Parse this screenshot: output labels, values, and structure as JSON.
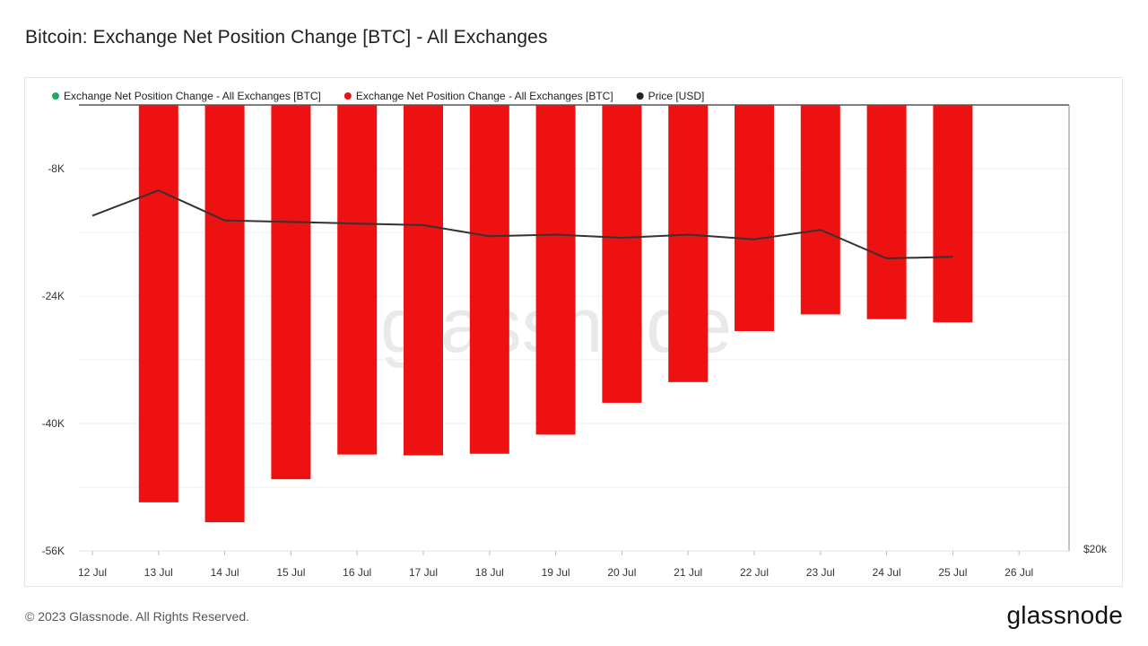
{
  "header": {
    "title": "Bitcoin: Exchange Net Position Change [BTC] - All Exchanges"
  },
  "footer": {
    "copyright": "© 2023 Glassnode. All Rights Reserved.",
    "logo": "glassnode"
  },
  "watermark": "glassnode",
  "colors": {
    "positive": "#1aab6b",
    "negative": "#ee1111",
    "price": "#333333",
    "grid": "#efefef"
  },
  "chart_data": {
    "type": "bar",
    "title": "Bitcoin: Exchange Net Position Change [BTC] - All Exchanges",
    "legend": [
      {
        "label": "Exchange Net Position Change - All Exchanges [BTC]",
        "color": "#1aab6b"
      },
      {
        "label": "Exchange Net Position Change - All Exchanges [BTC]",
        "color": "#ee1111"
      },
      {
        "label": "Price [USD]",
        "color": "#222222"
      }
    ],
    "legend_position": "top-left",
    "categories": [
      "12 Jul",
      "13 Jul",
      "14 Jul",
      "15 Jul",
      "16 Jul",
      "17 Jul",
      "18 Jul",
      "19 Jul",
      "20 Jul",
      "21 Jul",
      "22 Jul",
      "23 Jul",
      "24 Jul",
      "25 Jul",
      "26 Jul"
    ],
    "series": [
      {
        "name": "Exchange Net Position Change - All Exchanges [BTC]",
        "axis": "left",
        "values": [
          null,
          -49900,
          -52400,
          -47000,
          -43900,
          -44000,
          -43800,
          -41400,
          -37400,
          -34800,
          -28400,
          -26300,
          -26900,
          -27300,
          null
        ]
      },
      {
        "name": "Price [USD]",
        "axis": "right",
        "type": "line",
        "points": [
          [
            "12 Jul",
            30600
          ],
          [
            "13 Jul",
            31400
          ],
          [
            "14 Jul",
            30450
          ],
          [
            "15 Jul",
            30400
          ],
          [
            "16 Jul",
            30350
          ],
          [
            "17 Jul",
            30300
          ],
          [
            "18 Jul",
            29950
          ],
          [
            "19 Jul",
            30000
          ],
          [
            "20 Jul",
            29900
          ],
          [
            "21 Jul",
            30000
          ],
          [
            "22 Jul",
            29850
          ],
          [
            "23 Jul",
            30150
          ],
          [
            "24 Jul",
            29250
          ],
          [
            "25 Jul",
            29300
          ]
        ]
      }
    ],
    "y_left": {
      "ticks": [
        "-8K",
        "-24K",
        "-40K",
        "-56K"
      ],
      "tick_values": [
        -8000,
        -24000,
        -40000,
        -56000
      ],
      "range": [
        -56000,
        0
      ]
    },
    "y_right": {
      "ticks": [
        "$20k"
      ],
      "tick_values": [
        20000
      ],
      "range": [
        20000,
        34100
      ]
    },
    "grid": true
  }
}
